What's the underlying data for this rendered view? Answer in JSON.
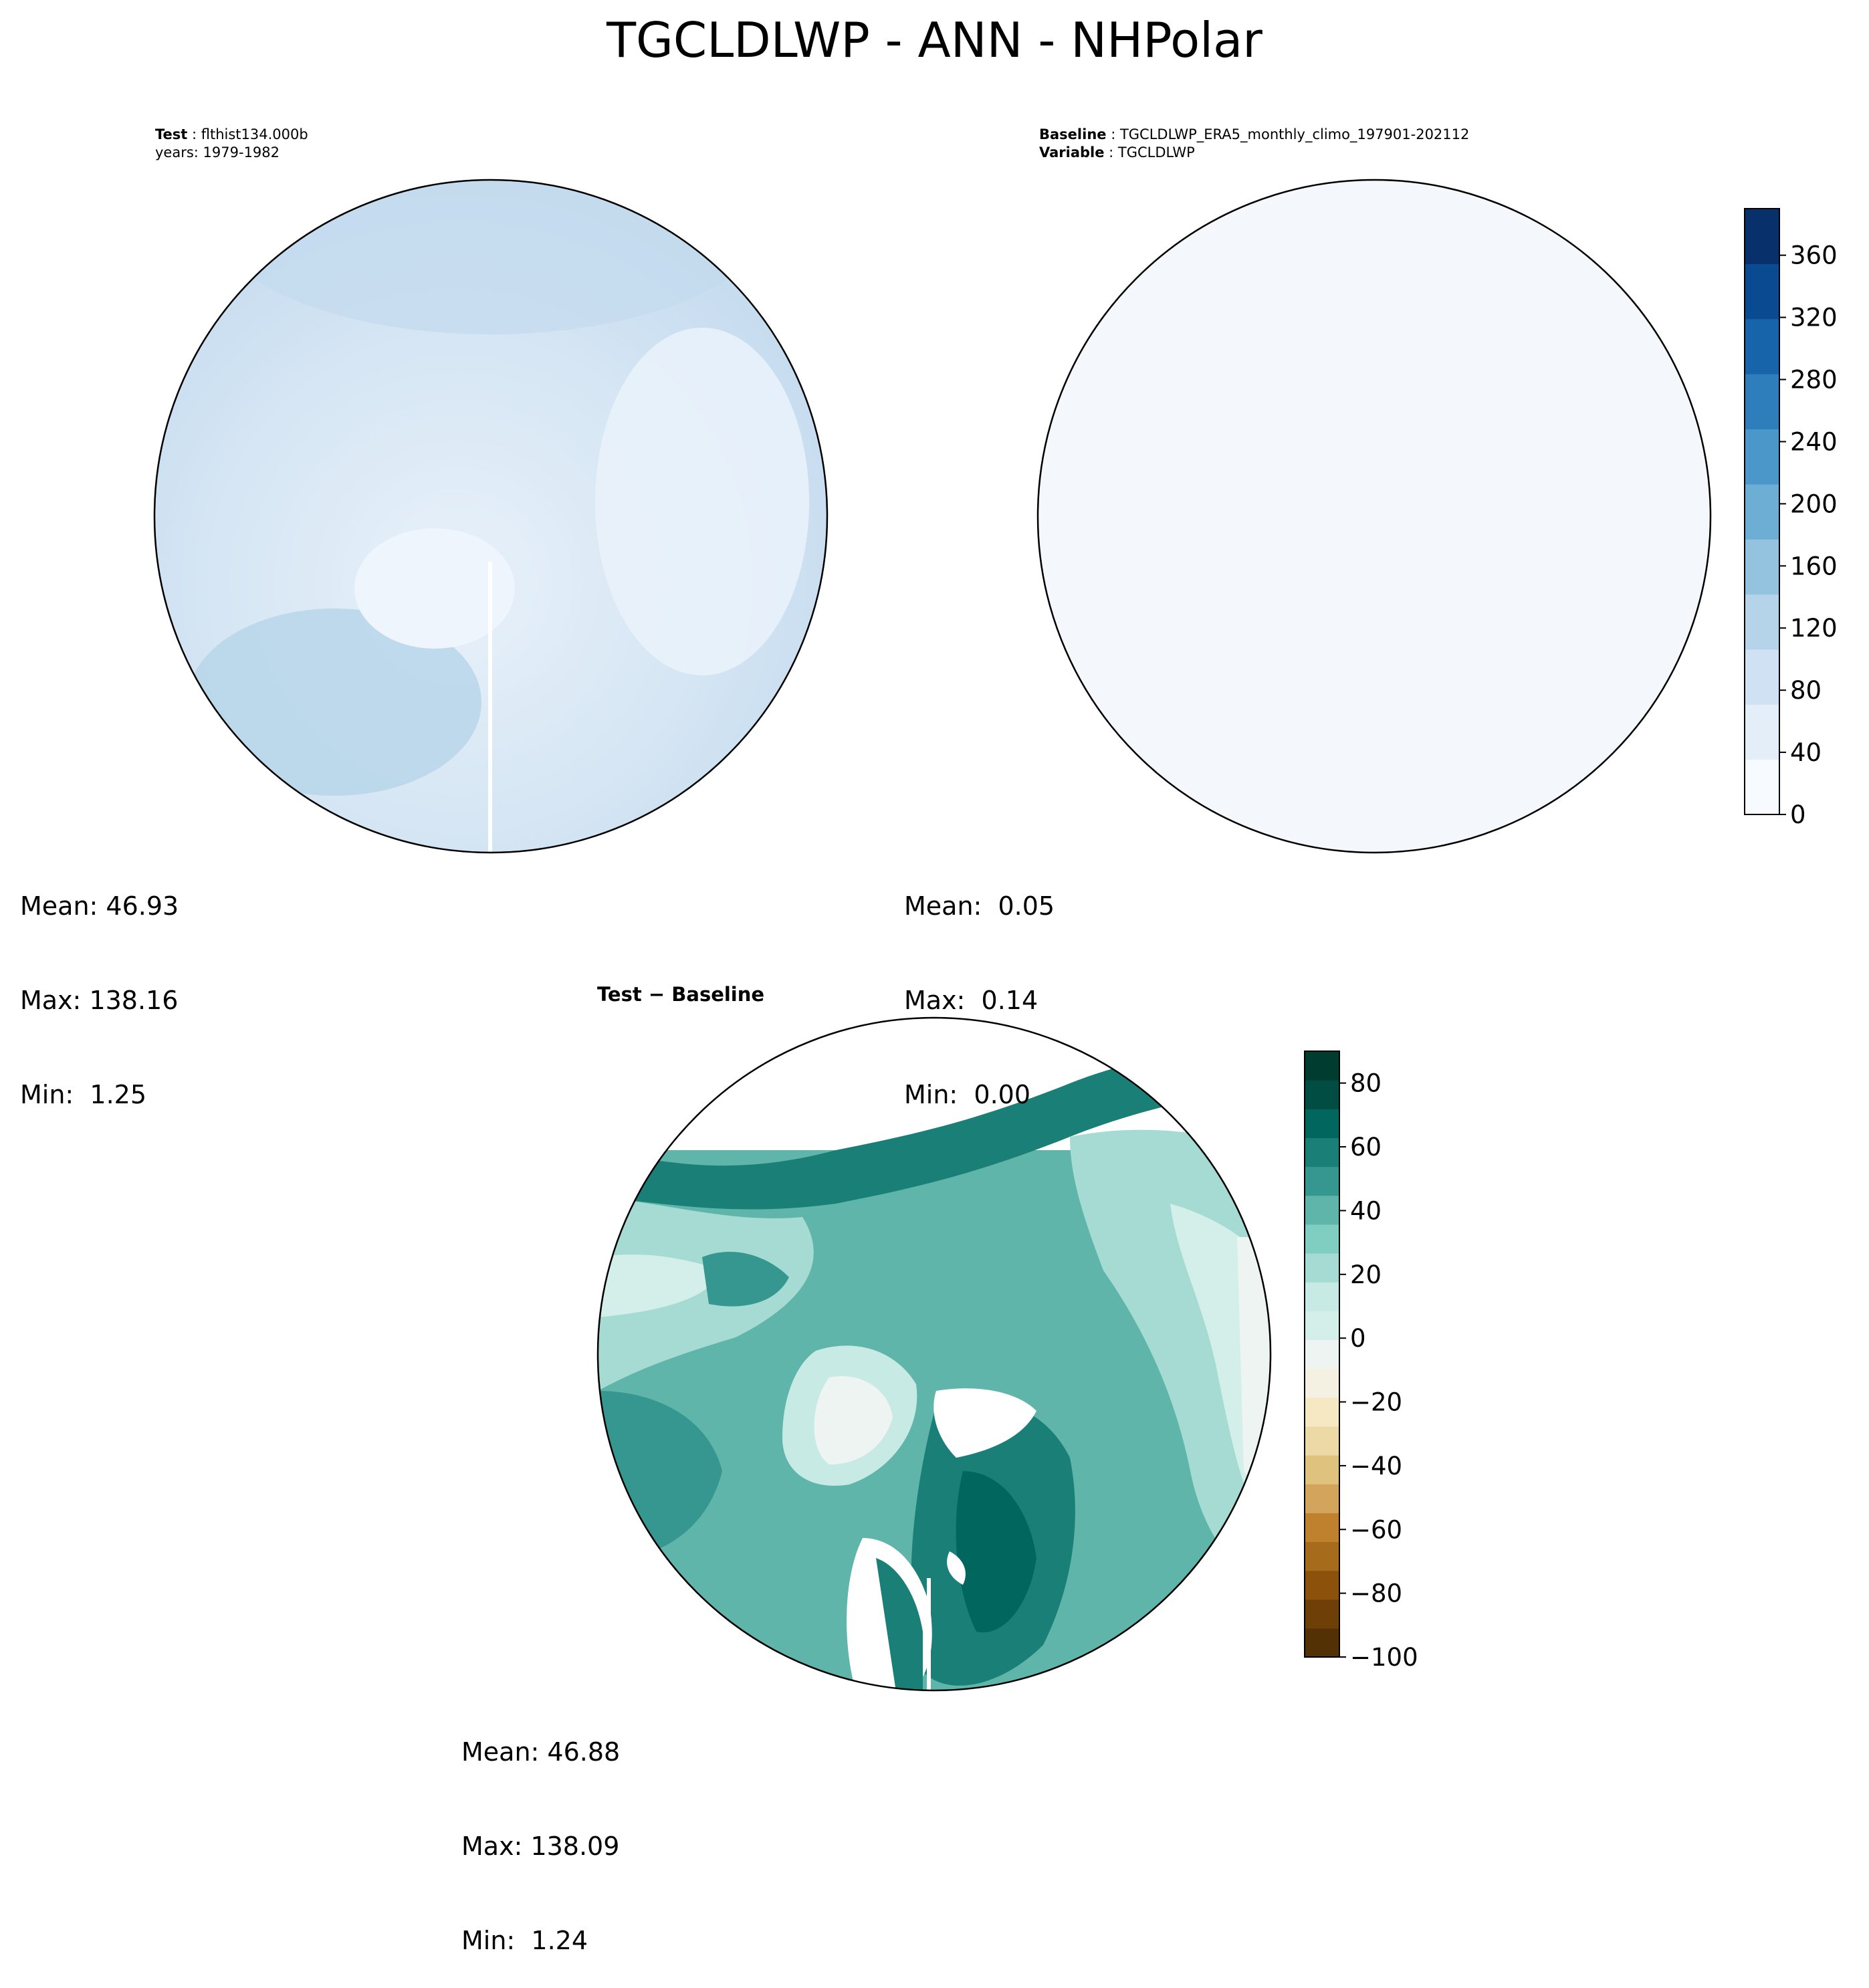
{
  "figure": {
    "title": "TGCLDLWP - ANN - NHPolar"
  },
  "panels": {
    "test": {
      "label1_key": "Test",
      "label1_value": "flthist134.000b",
      "label2": "years: 1979-1982",
      "stats": {
        "mean": "Mean: 46.93",
        "max": "Max: 138.16",
        "min": "Min:  1.25"
      }
    },
    "baseline": {
      "label1_key": "Baseline",
      "label1_value": "TGCLDLWP_ERA5_monthly_climo_197901-202112",
      "label2_key": "Variable",
      "label2_value": "TGCLDLWP",
      "stats": {
        "mean": "Mean:  0.05",
        "max": "Max:  0.14",
        "min": "Min:  0.00"
      }
    },
    "difference": {
      "title_left": "Test",
      "title_sep": "−",
      "title_right": "Baseline",
      "stats": {
        "mean": "Mean: 46.88",
        "max": "Max: 138.09",
        "min": "Min:  1.24"
      }
    }
  },
  "colorbars": {
    "field": {
      "colormap": "Blues",
      "range": [
        0,
        390
      ],
      "ticks": [
        "0",
        "40",
        "80",
        "120",
        "160",
        "200",
        "240",
        "280",
        "320",
        "360"
      ],
      "colors": [
        "#f7fbff",
        "#e3eef9",
        "#cfe1f2",
        "#b5d4e9",
        "#93c3df",
        "#6daed5",
        "#4b97c9",
        "#2f7ebc",
        "#1864aa",
        "#0a4a90",
        "#08306b"
      ]
    },
    "diff": {
      "colormap": "BrBG",
      "range": [
        -100,
        90
      ],
      "ticks": [
        "−100",
        "−80",
        "−60",
        "−40",
        "−20",
        "0",
        "20",
        "40",
        "60",
        "80"
      ],
      "colors": [
        "#543005",
        "#6e3f07",
        "#8c510a",
        "#a76b1c",
        "#bf812d",
        "#d3a45b",
        "#dfc27d",
        "#ecd9a6",
        "#f6e8c3",
        "#f5f1e2",
        "#eef4f2",
        "#d4eeea",
        "#c7eae5",
        "#a5dbd3",
        "#80cdc1",
        "#5fb5aa",
        "#35978f",
        "#1a8077",
        "#01665e",
        "#014d44",
        "#003c30"
      ]
    }
  }
}
